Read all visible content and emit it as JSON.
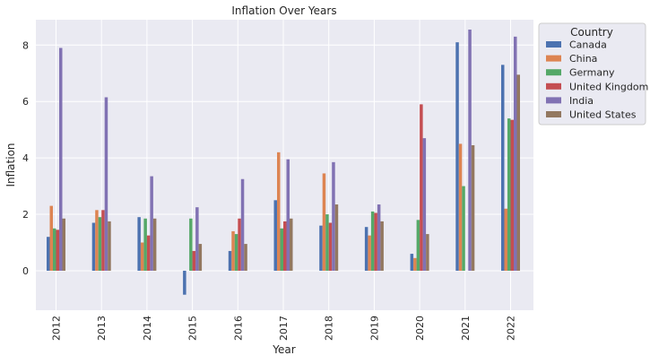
{
  "chart_data": {
    "type": "bar",
    "title": "Inflation Over Years",
    "xlabel": "Year",
    "ylabel": "Inflation",
    "categories": [
      "2012",
      "2013",
      "2014",
      "2015",
      "2016",
      "2017",
      "2018",
      "2019",
      "2020",
      "2021",
      "2022"
    ],
    "yticks": [
      "0",
      "2",
      "4",
      "6",
      "8"
    ],
    "ylim": [
      -1.4,
      8.9
    ],
    "grid": true,
    "legend": {
      "title": "Country",
      "placement": "outside-top-right"
    },
    "series": [
      {
        "name": "Canada",
        "color": "#4c72b0",
        "values": [
          1.2,
          1.7,
          1.9,
          -0.85,
          0.7,
          2.5,
          1.6,
          1.55,
          0.6,
          8.1,
          7.3
        ]
      },
      {
        "name": "China",
        "color": "#dd8452",
        "values": [
          2.3,
          2.15,
          1.0,
          0.0,
          1.4,
          4.2,
          3.45,
          1.25,
          0.45,
          4.5,
          2.2
        ]
      },
      {
        "name": "Germany",
        "color": "#55a868",
        "values": [
          1.5,
          1.9,
          1.85,
          1.85,
          1.3,
          1.5,
          2.0,
          2.1,
          1.8,
          3.0,
          5.4
        ]
      },
      {
        "name": "United Kingdom",
        "color": "#c44e52",
        "values": [
          1.45,
          2.15,
          1.25,
          0.7,
          1.85,
          1.75,
          1.7,
          2.05,
          5.9,
          0.0,
          5.35
        ]
      },
      {
        "name": "India",
        "color": "#8172b3",
        "values": [
          7.9,
          6.15,
          3.35,
          2.25,
          3.25,
          3.95,
          3.85,
          2.35,
          4.7,
          8.55,
          8.3
        ]
      },
      {
        "name": "United States",
        "color": "#937860",
        "values": [
          1.85,
          1.75,
          1.85,
          0.95,
          0.95,
          1.85,
          2.35,
          1.75,
          1.3,
          4.45,
          6.95
        ]
      }
    ]
  }
}
